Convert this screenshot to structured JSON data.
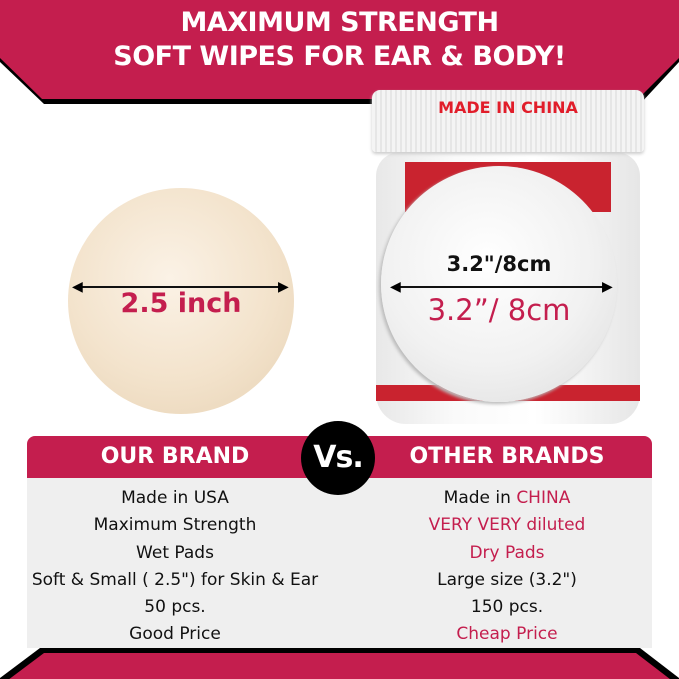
{
  "banner": {
    "line1": "MAXIMUM STRENGTH",
    "line2": "SOFT WIPES FOR EAR & BODY!"
  },
  "our_pad": {
    "size_label": "2.5 inch"
  },
  "other_product": {
    "lid_text": "MADE IN CHINA",
    "size_label_top": "3.2\"/8cm",
    "size_label_main": "3.2”/ 8cm"
  },
  "comparison": {
    "vs_label": "Vs.",
    "our_brand": {
      "title": "OUR BRAND",
      "rows": [
        "Made in USA",
        "Maximum Strength",
        "Wet Pads",
        "Soft & Small ( 2.5\") for Skin & Ear",
        "50 pcs.",
        "Good Price"
      ]
    },
    "other_brands": {
      "title": "OTHER BRANDS",
      "rows": [
        {
          "prefix": "Made in ",
          "text": "CHINA",
          "highlight": true
        },
        {
          "prefix": "",
          "text": "VERY VERY diluted",
          "highlight": true
        },
        {
          "prefix": "",
          "text": "Dry Pads",
          "highlight": true
        },
        {
          "prefix": "",
          "text": "Large size (3.2\")",
          "highlight": false
        },
        {
          "prefix": "",
          "text": "150 pcs.",
          "highlight": false
        },
        {
          "prefix": "",
          "text": "Cheap Price",
          "highlight": true
        }
      ]
    }
  },
  "colors": {
    "brand": "#c41e4e",
    "jar_red": "#c9232f",
    "table_bg": "#efefef",
    "vs_bg": "#000000"
  }
}
